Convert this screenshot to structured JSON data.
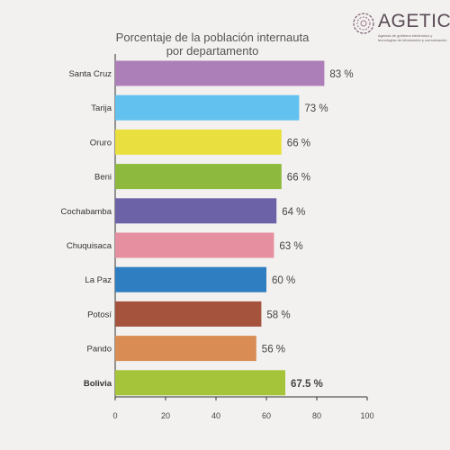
{
  "logo": {
    "name": "AGETIC",
    "subtitle": "Agencia de gobierno electrónico y tecnologías de información y comunicación"
  },
  "chart_data": {
    "type": "bar",
    "orientation": "horizontal",
    "title": [
      "Porcentaje de la población internauta",
      "por departamento"
    ],
    "categories": [
      "Santa Cruz",
      "Tarija",
      "Oruro",
      "Beni",
      "Cochabamba",
      "Chuquisaca",
      "La Paz",
      "Potosí",
      "Pando",
      "Bolivia"
    ],
    "values": [
      83,
      73,
      66,
      66,
      64,
      63,
      60,
      58,
      56,
      67.5
    ],
    "value_labels": [
      "83 %",
      "73 %",
      "66 %",
      "66 %",
      "64 %",
      "63 %",
      "60 %",
      "58 %",
      "56 %",
      "67.5 %"
    ],
    "colors": [
      "#ac7fb9",
      "#62c1ef",
      "#e9df3e",
      "#8dba3e",
      "#6b62a8",
      "#e68fa0",
      "#2f7ec1",
      "#a5533d",
      "#d98d55",
      "#a5c43a"
    ],
    "emphasized_category": "Bolivia",
    "xlim": [
      0,
      100
    ],
    "xticks": [
      0,
      20,
      40,
      60,
      80,
      100
    ],
    "grid": false
  }
}
